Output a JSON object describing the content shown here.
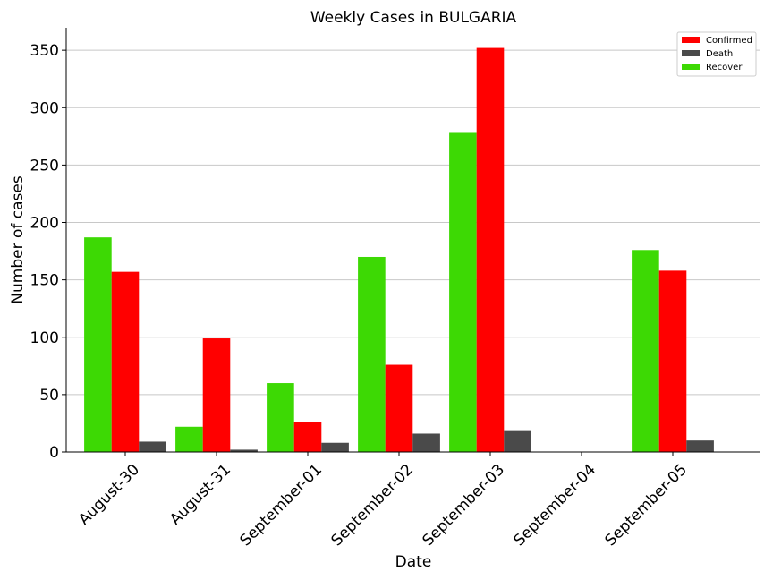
{
  "chart_data": {
    "type": "bar",
    "title": "Weekly Cases in BULGARIA",
    "xlabel": "Date",
    "ylabel": "Number of cases",
    "categories": [
      "August-30",
      "August-31",
      "September-01",
      "September-02",
      "September-03",
      "September-04",
      "September-05"
    ],
    "series": [
      {
        "name": "Recover",
        "color": "#3dd904",
        "values": [
          187,
          22,
          60,
          170,
          278,
          0,
          176
        ]
      },
      {
        "name": "Confirmed",
        "color": "#ff0000",
        "values": [
          157,
          99,
          26,
          76,
          352,
          0,
          158
        ]
      },
      {
        "name": "Death",
        "color": "#4a4a4a",
        "values": [
          9,
          2,
          8,
          16,
          19,
          0,
          10
        ]
      }
    ],
    "legend_order": [
      "Confirmed",
      "Death",
      "Recover"
    ],
    "yticks": [
      0,
      50,
      100,
      150,
      200,
      250,
      300,
      350
    ],
    "ylim": [
      0,
      369.6
    ],
    "grid": "horizontal",
    "legend_position": "top-right"
  }
}
